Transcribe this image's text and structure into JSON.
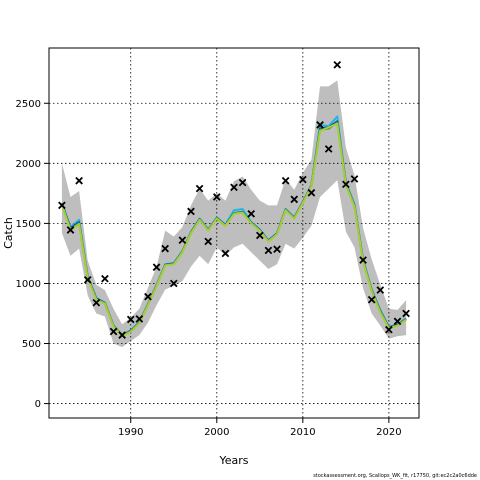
{
  "chart_data": {
    "type": "line",
    "title": "",
    "xlabel": "Years",
    "ylabel": "Catch",
    "xlim": [
      1980.5,
      2023.5
    ],
    "ylim": [
      -120,
      2960
    ],
    "x_ticks": [
      1990,
      2000,
      2010,
      2020
    ],
    "y_ticks": [
      0,
      500,
      1000,
      1500,
      2000,
      2500
    ],
    "grid": true,
    "observed": {
      "marker": "x",
      "x": [
        1982,
        1983,
        1984,
        1985,
        1986,
        1987,
        1988,
        1989,
        1990,
        1991,
        1992,
        1993,
        1994,
        1995,
        1996,
        1997,
        1998,
        1999,
        2000,
        2001,
        2002,
        2003,
        2004,
        2005,
        2006,
        2007,
        2008,
        2009,
        2010,
        2011,
        2012,
        2013,
        2014,
        2015,
        2016,
        2017,
        2018,
        2019,
        2020,
        2021,
        2022
      ],
      "y": [
        1650,
        1445,
        1855,
        1030,
        840,
        1040,
        600,
        570,
        700,
        705,
        890,
        1135,
        1290,
        1000,
        1360,
        1600,
        1790,
        1350,
        1720,
        1250,
        1800,
        1840,
        1580,
        1400,
        1275,
        1285,
        1855,
        1700,
        1865,
        1755,
        2320,
        2120,
        2820,
        1825,
        1870,
        1195,
        865,
        945,
        615,
        685,
        750
      ]
    },
    "uncertainty_band": {
      "color": "#bebebe",
      "x": [
        1982,
        1983,
        1984,
        1985,
        1986,
        1987,
        1988,
        1989,
        1990,
        1991,
        1992,
        1993,
        1994,
        1995,
        1996,
        1997,
        1998,
        1999,
        2000,
        2001,
        2002,
        2003,
        2004,
        2005,
        2006,
        2007,
        2008,
        2009,
        2010,
        2011,
        2012,
        2013,
        2014,
        2015,
        2016,
        2017,
        2018,
        2019,
        2020,
        2021,
        2022
      ],
      "lower": [
        1420,
        1230,
        1290,
        900,
        750,
        725,
        500,
        470,
        520,
        570,
        675,
        820,
        950,
        980,
        1020,
        1140,
        1230,
        1160,
        1300,
        1230,
        1300,
        1330,
        1260,
        1190,
        1120,
        1160,
        1330,
        1290,
        1380,
        1480,
        1720,
        1790,
        1860,
        1430,
        1300,
        960,
        750,
        650,
        540,
        560,
        570
      ],
      "upper": [
        2000,
        1720,
        1770,
        1190,
        990,
        945,
        790,
        660,
        715,
        790,
        965,
        1140,
        1440,
        1390,
        1470,
        1650,
        1790,
        1690,
        1750,
        1690,
        1850,
        1890,
        1780,
        1690,
        1650,
        1650,
        1870,
        1780,
        1920,
        2030,
        2640,
        2640,
        2690,
        2130,
        1900,
        1460,
        1200,
        990,
        790,
        780,
        860
      ]
    },
    "series": [
      {
        "color": "#1fb8e6",
        "x": [
          1982,
          1983,
          1984,
          1985,
          1986,
          1987,
          1988,
          1989,
          1990,
          1991,
          1992,
          1993,
          1994,
          1995,
          1996,
          1997,
          1998,
          1999,
          2000,
          2001,
          2002,
          2003,
          2004,
          2005,
          2006,
          2007,
          2008,
          2009,
          2010,
          2011,
          2012,
          2013,
          2014,
          2015,
          2016,
          2017,
          2018,
          2019,
          2020,
          2021,
          2022
        ],
        "values": [
          1670,
          1470,
          1530,
          1060,
          880,
          840,
          650,
          570,
          610,
          680,
          830,
          990,
          1160,
          1170,
          1270,
          1430,
          1540,
          1450,
          1550,
          1490,
          1610,
          1620,
          1510,
          1450,
          1360,
          1420,
          1620,
          1550,
          1680,
          1820,
          2320,
          2310,
          2390,
          1840,
          1660,
          1200,
          950,
          780,
          640,
          660,
          710
        ]
      },
      {
        "color": "#1f3fb4",
        "x": [
          1982,
          1983,
          1984,
          1985,
          1986,
          1987,
          1988,
          1989,
          1990,
          1991,
          1992,
          1993,
          1994,
          1995,
          1996,
          1997,
          1998,
          1999,
          2000,
          2001,
          2002,
          2003,
          2004,
          2005,
          2006,
          2007,
          2008,
          2009,
          2010,
          2011,
          2012,
          2013,
          2014,
          2015,
          2016,
          2017,
          2018,
          2019,
          2020,
          2021,
          2022
        ],
        "values": [
          1665,
          1460,
          1510,
          1055,
          875,
          838,
          648,
          568,
          605,
          676,
          826,
          986,
          1156,
          1166,
          1266,
          1426,
          1536,
          1446,
          1546,
          1486,
          1586,
          1596,
          1506,
          1446,
          1356,
          1416,
          1616,
          1546,
          1676,
          1816,
          2290,
          2300,
          2350,
          1830,
          1650,
          1190,
          945,
          770,
          635,
          655,
          705
        ]
      },
      {
        "color": "#2ca02c",
        "x": [
          1982,
          1983,
          1984,
          1985,
          1986,
          1987,
          1988,
          1989,
          1990,
          1991,
          1992,
          1993,
          1994,
          1995,
          1996,
          1997,
          1998,
          1999,
          2000,
          2001,
          2002,
          2003,
          2004,
          2005,
          2006,
          2007,
          2008,
          2009,
          2010,
          2011,
          2012,
          2013,
          2014,
          2015,
          2016,
          2017,
          2018,
          2019,
          2020,
          2021,
          2022
        ],
        "values": [
          1660,
          1450,
          1500,
          1050,
          870,
          835,
          645,
          565,
          600,
          672,
          822,
          982,
          1152,
          1162,
          1262,
          1422,
          1532,
          1442,
          1542,
          1482,
          1582,
          1592,
          1502,
          1442,
          1352,
          1412,
          1612,
          1542,
          1672,
          1812,
          2280,
          2290,
          2340,
          1825,
          1645,
          1185,
          940,
          765,
          630,
          650,
          700
        ]
      },
      {
        "color": "#aacc33",
        "x": [
          1982,
          1983,
          1984,
          1985,
          1986,
          1987,
          1988,
          1989,
          1990,
          1991,
          1992,
          1993,
          1994,
          1995,
          1996,
          1997,
          1998,
          1999,
          2000,
          2001,
          2002,
          2003,
          2004,
          2005,
          2006,
          2007,
          2008,
          2009,
          2010,
          2011,
          2012,
          2013,
          2014,
          2015,
          2016,
          2017,
          2018,
          2019,
          2020,
          2021,
          2022
        ],
        "values": [
          1655,
          1445,
          1495,
          1045,
          865,
          832,
          642,
          562,
          598,
          670,
          820,
          980,
          1150,
          1160,
          1260,
          1420,
          1530,
          1440,
          1540,
          1480,
          1580,
          1590,
          1500,
          1440,
          1350,
          1410,
          1610,
          1540,
          1670,
          1810,
          2270,
          2300,
          2330,
          1820,
          1640,
          1180,
          935,
          760,
          628,
          648,
          698
        ]
      }
    ]
  },
  "footer_text": "stockassessment.org, Scallops_WK_fit, r17750, git:ec2c2a0c6dde"
}
